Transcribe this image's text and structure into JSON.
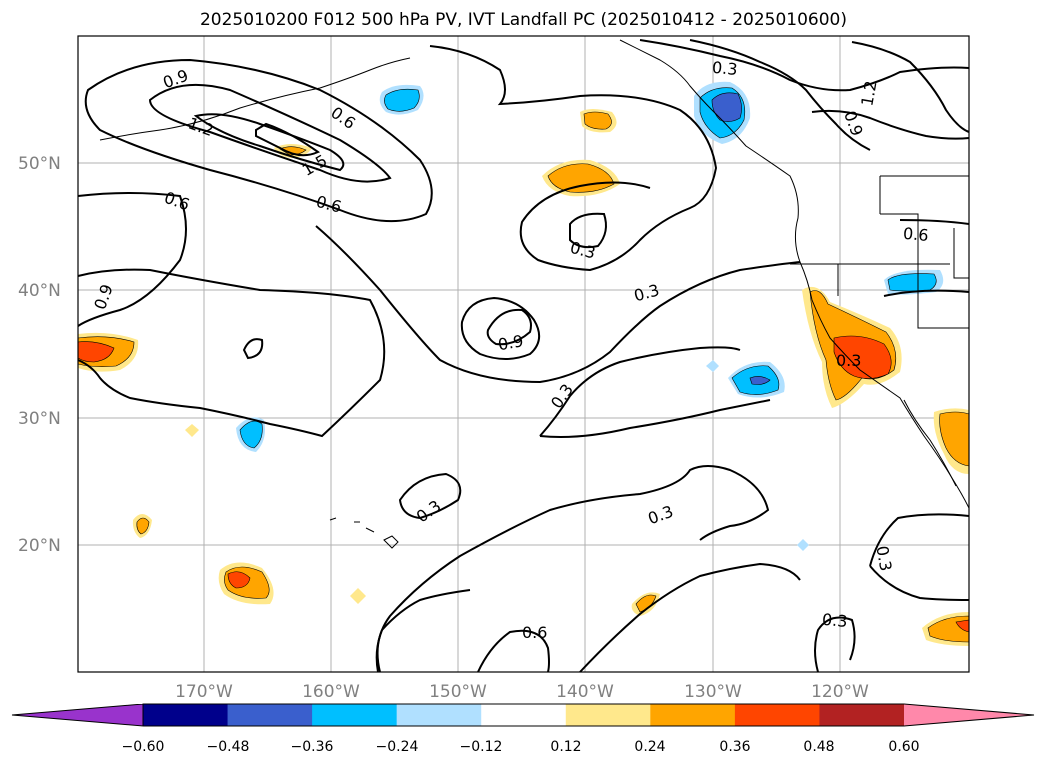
{
  "title": "2025010200 F012 500 hPa PV, IVT Landfall PC (2025010412 - 2025010600)",
  "lat_labels": [
    "50°N",
    "40°N",
    "30°N",
    "20°N"
  ],
  "lon_labels": [
    "170°W",
    "160°W",
    "150°W",
    "140°W",
    "130°W",
    "120°W"
  ],
  "colorbar": {
    "ticks": [
      "−0.60",
      "−0.48",
      "−0.36",
      "−0.24",
      "−0.12",
      "0.12",
      "0.24",
      "0.36",
      "0.48",
      "0.60"
    ],
    "colors": [
      "#9933cc",
      "#00008b",
      "#3a5fcd",
      "#00bfff",
      "#b0e0ff",
      "#ffffff",
      "#ffe88c",
      "#ffa500",
      "#ff4500",
      "#b22222",
      "#ff88aa"
    ]
  },
  "contour_labels": [
    {
      "text": "0.9",
      "key": "a"
    },
    {
      "text": "1.2",
      "key": "b"
    },
    {
      "text": "1.5",
      "key": "c"
    },
    {
      "text": "0.6",
      "key": "d"
    },
    {
      "text": "0.6",
      "key": "e"
    },
    {
      "text": "0.6",
      "key": "f"
    },
    {
      "text": "0.9",
      "key": "g"
    },
    {
      "text": "0.3",
      "key": "h"
    },
    {
      "text": "1.2",
      "key": "i"
    },
    {
      "text": "0.9",
      "key": "j"
    },
    {
      "text": "0.3",
      "key": "k"
    },
    {
      "text": "0.6",
      "key": "l"
    },
    {
      "text": "0.3",
      "key": "m"
    },
    {
      "text": "0.9",
      "key": "n"
    },
    {
      "text": "0.3",
      "key": "o"
    },
    {
      "text": "0.3",
      "key": "p"
    },
    {
      "text": "0.3",
      "key": "q"
    },
    {
      "text": "0.6",
      "key": "r"
    },
    {
      "text": "0.3",
      "key": "s"
    },
    {
      "text": "0.3",
      "key": "t"
    },
    {
      "text": "0.3",
      "key": "u"
    }
  ]
}
